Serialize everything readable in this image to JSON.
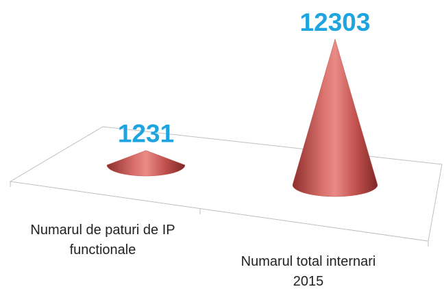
{
  "chart_data": {
    "type": "cone",
    "categories": [
      "Numarul de paturi de IP functionale",
      "Numarul total internari 2015"
    ],
    "values": [
      1231,
      12303
    ],
    "color": "#c0504d",
    "label_color": "#1ea5e0"
  }
}
